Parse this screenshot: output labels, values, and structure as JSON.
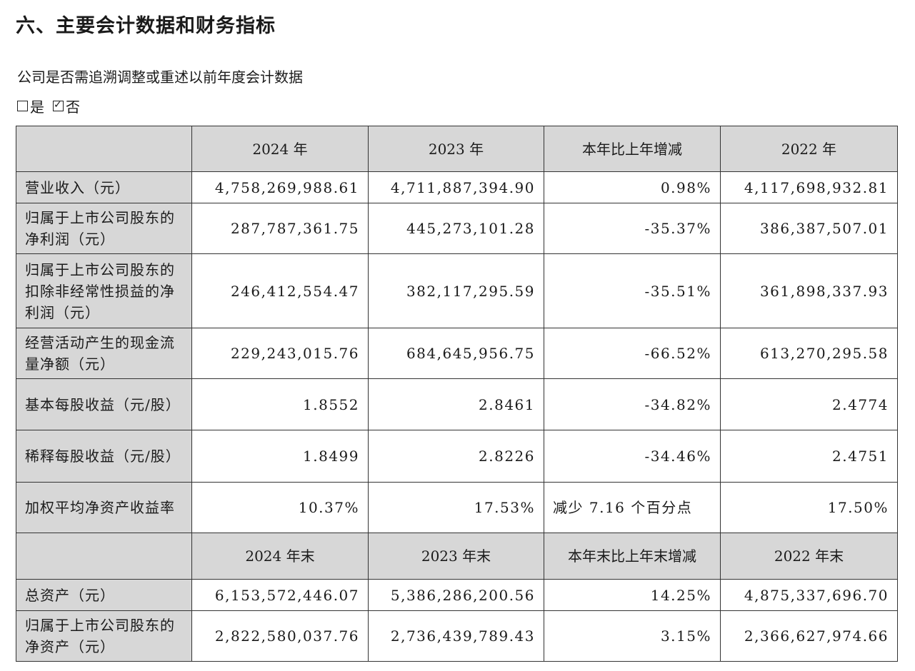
{
  "title": "六、主要会计数据和财务指标",
  "question": "公司是否需追溯调整或重述以前年度会计数据",
  "options": [
    {
      "label": "是",
      "checked": false
    },
    {
      "label": "否",
      "checked": true
    }
  ],
  "table1": {
    "headers": [
      "",
      "2024 年",
      "2023 年",
      "本年比上年增减",
      "2022 年"
    ],
    "rows": [
      {
        "label": "营业收入（元）",
        "v2024": "4,758,269,988.61",
        "v2023": "4,711,887,394.90",
        "change": "0.98%",
        "v2022": "4,117,698,932.81"
      },
      {
        "label": "归属于上市公司股东的净利润（元）",
        "v2024": "287,787,361.75",
        "v2023": "445,273,101.28",
        "change": "-35.37%",
        "v2022": "386,387,507.01"
      },
      {
        "label": "归属于上市公司股东的扣除非经常性损益的净利润（元）",
        "v2024": "246,412,554.47",
        "v2023": "382,117,295.59",
        "change": "-35.51%",
        "v2022": "361,898,337.93"
      },
      {
        "label": "经营活动产生的现金流量净额（元）",
        "v2024": "229,243,015.76",
        "v2023": "684,645,956.75",
        "change": "-66.52%",
        "v2022": "613,270,295.58"
      },
      {
        "label": "基本每股收益（元/股）",
        "v2024": "1.8552",
        "v2023": "2.8461",
        "change": "-34.82%",
        "v2022": "2.4774"
      },
      {
        "label": "稀释每股收益（元/股）",
        "v2024": "1.8499",
        "v2023": "2.8226",
        "change": "-34.46%",
        "v2022": "2.4751"
      },
      {
        "label": "加权平均净资产收益率",
        "v2024": "10.37%",
        "v2023": "17.53%",
        "change": "减少 7.16 个百分点",
        "v2022": "17.50%"
      }
    ]
  },
  "table2": {
    "headers": [
      "",
      "2024 年末",
      "2023 年末",
      "本年末比上年末增减",
      "2022 年末"
    ],
    "rows": [
      {
        "label": "总资产（元）",
        "v2024": "6,153,572,446.07",
        "v2023": "5,386,286,200.56",
        "change": "14.25%",
        "v2022": "4,875,337,696.70"
      },
      {
        "label": "归属于上市公司股东的净资产（元）",
        "v2024": "2,822,580,037.76",
        "v2023": "2,736,439,789.43",
        "change": "3.15%",
        "v2022": "2,366,627,974.66"
      }
    ]
  }
}
